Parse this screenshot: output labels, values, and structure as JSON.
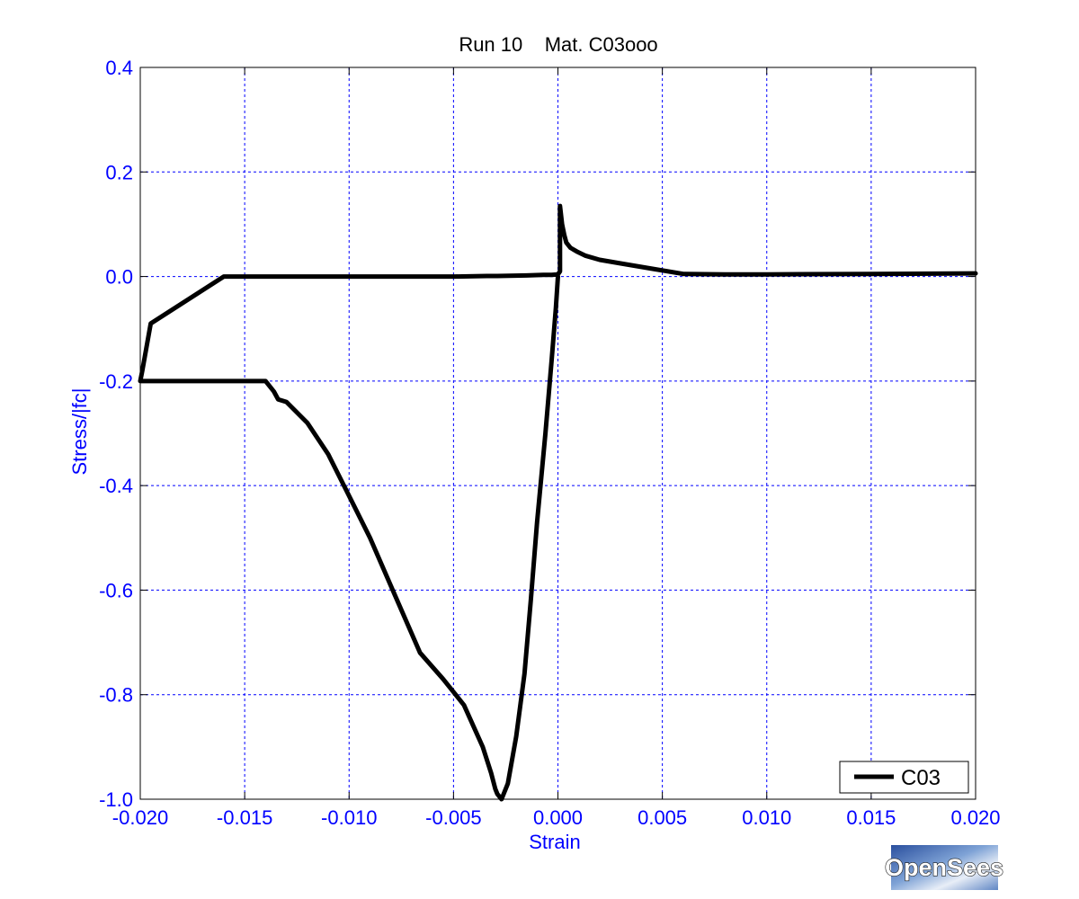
{
  "chart_data": {
    "type": "line",
    "title": "Run 10    Mat. C03ooo",
    "xlabel": "Strain",
    "ylabel": "Stress/|fc|",
    "xlim": [
      -0.02,
      0.02
    ],
    "ylim": [
      -1.0,
      0.4
    ],
    "xticks": [
      -0.02,
      -0.015,
      -0.01,
      -0.005,
      0.0,
      0.005,
      0.01,
      0.015,
      0.02
    ],
    "xtick_labels": [
      "-0.020",
      "-0.015",
      "-0.010",
      "-0.005",
      "0.000",
      "0.005",
      "0.010",
      "0.015",
      "0.020"
    ],
    "yticks": [
      0.4,
      0.2,
      0.0,
      -0.2,
      -0.4,
      -0.6,
      -0.8,
      -1.0
    ],
    "ytick_labels": [
      "0.4",
      "0.2",
      "0.0",
      "-0.2",
      "-0.4",
      "-0.6",
      "-0.8",
      "-1.0"
    ],
    "grid": true,
    "legend_position": "bottom-right",
    "series": [
      {
        "name": "C03",
        "color": "#000000",
        "x": [
          0.0,
          -0.0001,
          -0.0003,
          -0.0006,
          -0.001,
          -0.0013,
          -0.0016,
          -0.002,
          -0.0024,
          -0.0027,
          -0.0029,
          -0.003,
          -0.0032,
          -0.0036,
          -0.0045,
          -0.0055,
          -0.0066,
          -0.0078,
          -0.009,
          -0.01,
          -0.011,
          -0.012,
          -0.013,
          -0.0134,
          -0.0136,
          -0.014,
          -0.015,
          -0.017,
          -0.019,
          -0.0199,
          -0.02,
          -0.0199,
          -0.0195,
          -0.016,
          -0.013,
          -0.01,
          -0.0075,
          -0.0049,
          -0.0034,
          -0.0029,
          -0.0015,
          -0.0007,
          -0.0003,
          0.0,
          0.0001,
          0.0001,
          0.0002,
          0.0003,
          0.0004,
          0.0006,
          0.0009,
          0.0013,
          0.002,
          0.003,
          0.0045,
          0.006,
          0.008,
          0.01,
          0.015,
          0.02
        ],
        "y": [
          0.0,
          -0.06,
          -0.16,
          -0.3,
          -0.47,
          -0.62,
          -0.76,
          -0.88,
          -0.97,
          -1.0,
          -0.99,
          -0.98,
          -0.95,
          -0.9,
          -0.82,
          -0.77,
          -0.72,
          -0.61,
          -0.5,
          -0.42,
          -0.34,
          -0.28,
          -0.24,
          -0.235,
          -0.22,
          -0.2,
          -0.2,
          -0.2,
          -0.2,
          -0.2,
          -0.2,
          -0.18,
          -0.09,
          0.0,
          0.0,
          0.0,
          0.0,
          0.0,
          0.001,
          0.001,
          0.002,
          0.003,
          0.003,
          0.004,
          0.01,
          0.135,
          0.1,
          0.08,
          0.065,
          0.055,
          0.048,
          0.04,
          0.032,
          0.025,
          0.015,
          0.005,
          0.004,
          0.004,
          0.005,
          0.006
        ]
      }
    ]
  },
  "logo": {
    "text": "OpenSees"
  }
}
